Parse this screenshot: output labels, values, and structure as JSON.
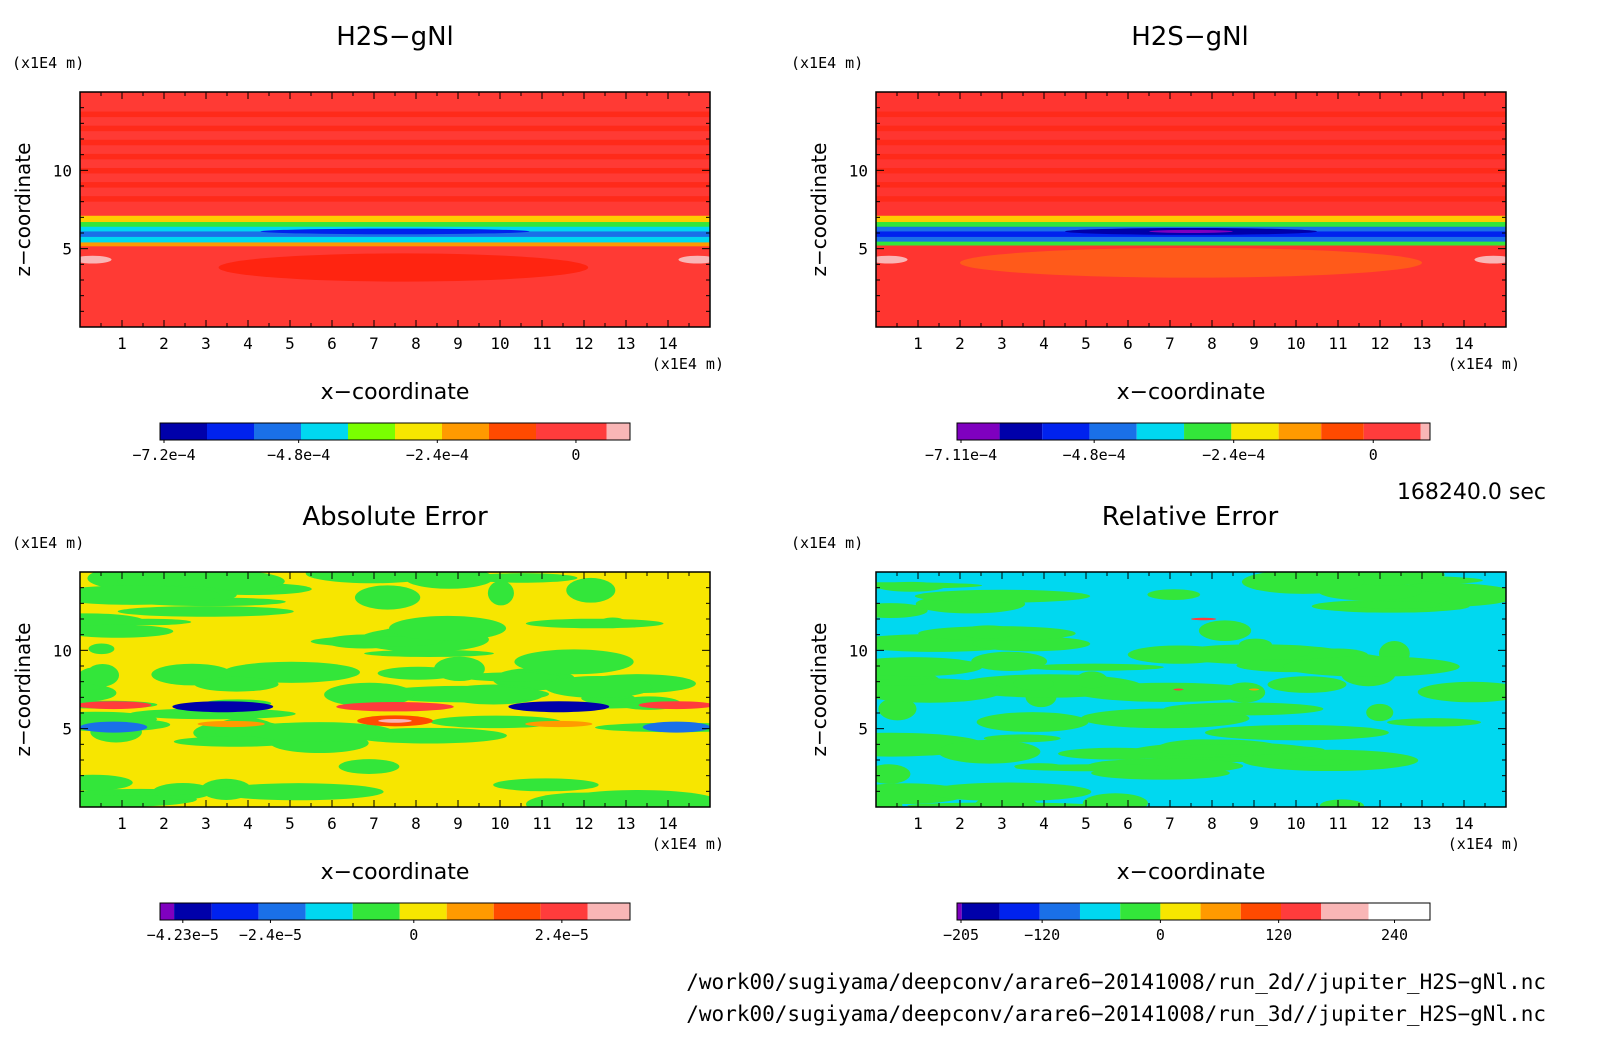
{
  "colors": {
    "jet13": [
      "#7f00bf",
      "#0000aa",
      "#0022ee",
      "#1a70e8",
      "#00d8f0",
      "#33e63a",
      "#7aff00",
      "#f7e600",
      "#ff9a00",
      "#ff4a00",
      "#e8182a",
      "#ff3c3c",
      "#f9b6b6"
    ]
  },
  "chart_data": [
    {
      "type": "heatmap",
      "title": "H2S−gNl",
      "xlabel": "x−coordinate",
      "ylabel": "z−coordinate",
      "x_unit": "(x1E4 m)",
      "y_unit": "(x1E4 m)",
      "xlim": [
        0,
        15
      ],
      "ylim": [
        0,
        15
      ],
      "xticks": [
        "1",
        "2",
        "3",
        "4",
        "5",
        "6",
        "7",
        "8",
        "9",
        "10",
        "11",
        "12",
        "13",
        "14"
      ],
      "yticks": [
        "5",
        "10"
      ],
      "colorbar": {
        "labels": [
          "−7.2e−4",
          "−4.8e−4",
          "−2.4e−4",
          "0"
        ],
        "label_fraction": [
          0.0,
          0.295,
          0.59,
          0.885
        ],
        "colors": [
          "#0000aa",
          "#0022ee",
          "#1a70e8",
          "#00d8f0",
          "#7aff00",
          "#f7e600",
          "#ff9a00",
          "#ff4a00",
          "#ff3c3c",
          "#f9b6b6"
        ],
        "fractions": [
          0.1,
          0.1,
          0.1,
          0.1,
          0.1,
          0.1,
          0.1,
          0.1,
          0.15,
          0.05
        ]
      },
      "field": "h2s_a"
    },
    {
      "type": "heatmap",
      "title": "H2S−gNl",
      "xlabel": "x−coordinate",
      "ylabel": "z−coordinate",
      "x_unit": "(x1E4 m)",
      "y_unit": "(x1E4 m)",
      "xlim": [
        0,
        15
      ],
      "ylim": [
        0,
        15
      ],
      "xticks": [
        "1",
        "2",
        "3",
        "4",
        "5",
        "6",
        "7",
        "8",
        "9",
        "10",
        "11",
        "12",
        "13",
        "14"
      ],
      "yticks": [
        "5",
        "10"
      ],
      "colorbar": {
        "labels": [
          "−7.11e−4",
          "−4.8e−4",
          "−2.4e−4",
          "0"
        ],
        "label_fraction": [
          0.0,
          0.29,
          0.585,
          0.88
        ],
        "colors": [
          "#7f00bf",
          "#0000aa",
          "#0022ee",
          "#1a70e8",
          "#00d8f0",
          "#33e63a",
          "#f7e600",
          "#ff9a00",
          "#ff4a00",
          "#ff3c3c",
          "#f9b6b6"
        ],
        "fractions": [
          0.09,
          0.09,
          0.1,
          0.1,
          0.1,
          0.1,
          0.1,
          0.09,
          0.09,
          0.12,
          0.02
        ]
      },
      "field": "h2s_b"
    },
    {
      "type": "heatmap",
      "title": "Absolute Error",
      "xlabel": "x−coordinate",
      "ylabel": "z−coordinate",
      "x_unit": "(x1E4 m)",
      "y_unit": "(x1E4 m)",
      "xlim": [
        0,
        15
      ],
      "ylim": [
        0,
        15
      ],
      "xticks": [
        "1",
        "2",
        "3",
        "4",
        "5",
        "6",
        "7",
        "8",
        "9",
        "10",
        "11",
        "12",
        "13",
        "14"
      ],
      "yticks": [
        "5",
        "10"
      ],
      "colorbar": {
        "labels": [
          "−4.23e−5",
          "−2.4e−5",
          "0",
          "2.4e−5"
        ],
        "label_fraction": [
          0.04,
          0.235,
          0.54,
          0.855
        ],
        "colors": [
          "#7f00bf",
          "#0000aa",
          "#0022ee",
          "#1a70e8",
          "#00d8f0",
          "#33e63a",
          "#f7e600",
          "#ff9a00",
          "#ff4a00",
          "#ff3c3c",
          "#f9b6b6"
        ],
        "fractions": [
          0.03,
          0.08,
          0.1,
          0.1,
          0.1,
          0.1,
          0.1,
          0.1,
          0.1,
          0.1,
          0.09
        ]
      },
      "field": "abs_err"
    },
    {
      "type": "heatmap",
      "title": "Relative Error",
      "xlabel": "x−coordinate",
      "ylabel": "z−coordinate",
      "x_unit": "(x1E4 m)",
      "y_unit": "(x1E4 m)",
      "xlim": [
        0,
        15
      ],
      "ylim": [
        0,
        15
      ],
      "xticks": [
        "1",
        "2",
        "3",
        "4",
        "5",
        "6",
        "7",
        "8",
        "9",
        "10",
        "11",
        "12",
        "13",
        "14"
      ],
      "yticks": [
        "5",
        "10"
      ],
      "colorbar": {
        "labels": [
          "−205",
          "−120",
          "0",
          "120",
          "240"
        ],
        "label_fraction": [
          0.0,
          0.18,
          0.43,
          0.68,
          0.925
        ],
        "colors": [
          "#7f00bf",
          "#0000aa",
          "#0022ee",
          "#1a70e8",
          "#00d8f0",
          "#33e63a",
          "#f7e600",
          "#ff9a00",
          "#ff4a00",
          "#ff3c3c",
          "#f9b6b6"
        ],
        "fractions": [
          0.01,
          0.08,
          0.085,
          0.085,
          0.085,
          0.085,
          0.085,
          0.085,
          0.085,
          0.085,
          0.1
        ]
      },
      "field": "rel_err"
    }
  ],
  "timestamp": "168240.0 sec",
  "footer": {
    "line1": "/work00/sugiyama/deepconv/arare6−20141008/run_2d//jupiter_H2S−gNl.nc",
    "line2": "/work00/sugiyama/deepconv/arare6−20141008/run_3d//jupiter_H2S−gNl.nc"
  }
}
